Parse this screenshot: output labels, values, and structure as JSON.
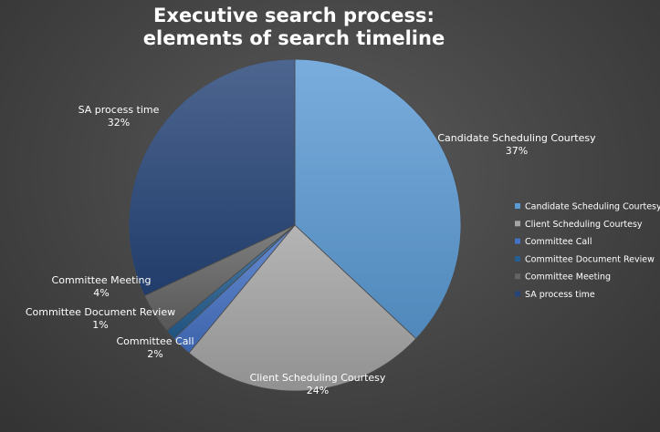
{
  "chart_data": {
    "type": "pie",
    "title_lines": [
      "Executive search process:",
      "elements of search timeline"
    ],
    "slices": [
      {
        "label": "Candidate Scheduling Courtesy",
        "value": 37,
        "value_text": "37%",
        "color": "#5b9bd5"
      },
      {
        "label": "Client Scheduling Courtesy",
        "value": 24,
        "value_text": "24%",
        "color": "#a5a5a5"
      },
      {
        "label": "Committee Call",
        "value": 2,
        "value_text": "2%",
        "color": "#4472c4"
      },
      {
        "label": "Committee Document Review",
        "value": 1,
        "value_text": "1%",
        "color": "#255e91"
      },
      {
        "label": "Committee Meeting",
        "value": 4,
        "value_text": "4%",
        "color": "#636363"
      },
      {
        "label": "SA process time",
        "value": 32,
        "value_text": "32%",
        "color": "#264478"
      }
    ],
    "legend_position": "right",
    "start_angle": "12 o'clock",
    "direction": "clockwise"
  }
}
